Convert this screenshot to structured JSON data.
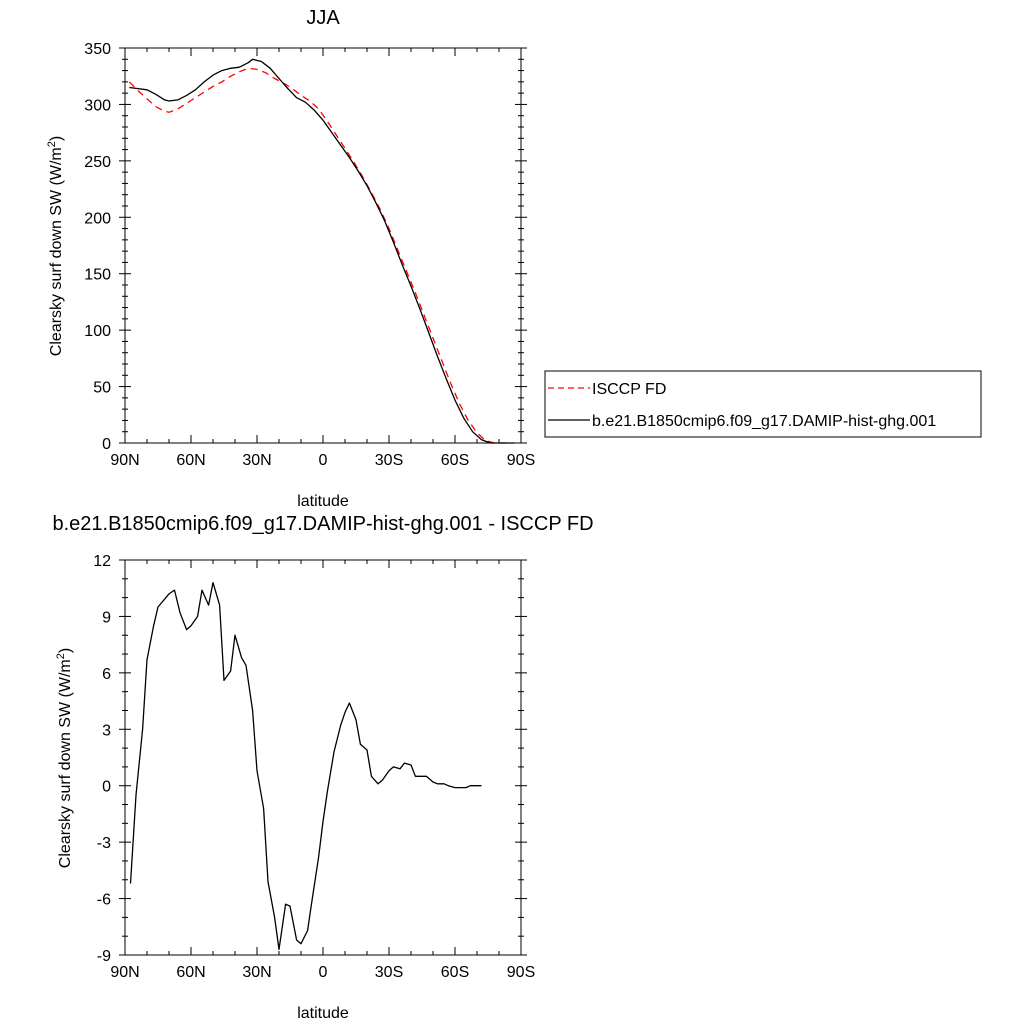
{
  "chart_data": [
    {
      "type": "line",
      "title": "JJA",
      "xlabel": "latitude",
      "ylabel_main": "Clearsky surf down SW (W/m",
      "ylabel_sup": "2",
      "ylabel_close": ")",
      "xlim": [
        90,
        -90
      ],
      "ylim": [
        0,
        350
      ],
      "xticks": [
        90,
        60,
        30,
        0,
        -30,
        -60,
        -90
      ],
      "xtick_labels": [
        "90N",
        "60N",
        "30N",
        "0",
        "30S",
        "60S",
        "90S"
      ],
      "yticks": [
        0,
        50,
        100,
        150,
        200,
        250,
        300,
        350
      ],
      "ytick_labels": [
        "0",
        "50",
        "100",
        "150",
        "200",
        "250",
        "300",
        "350"
      ],
      "grid": false,
      "legend_position": "right",
      "series": [
        {
          "name": "ISCCP FD",
          "color": "#ff0000",
          "dash": "dashed",
          "points": [
            [
              88,
              320
            ],
            [
              84,
              312
            ],
            [
              80,
              305
            ],
            [
              76,
              298
            ],
            [
              72,
              294
            ],
            [
              70,
              293
            ],
            [
              66,
              296
            ],
            [
              62,
              301
            ],
            [
              58,
              306
            ],
            [
              54,
              311
            ],
            [
              50,
              316
            ],
            [
              46,
              320
            ],
            [
              42,
              325
            ],
            [
              38,
              329
            ],
            [
              34,
              332
            ],
            [
              30,
              331
            ],
            [
              26,
              328
            ],
            [
              22,
              323
            ],
            [
              18,
              319
            ],
            [
              14,
              314
            ],
            [
              10,
              308
            ],
            [
              6,
              303
            ],
            [
              2,
              296
            ],
            [
              -2,
              285
            ],
            [
              -6,
              273
            ],
            [
              -10,
              261
            ],
            [
              -14,
              249
            ],
            [
              -18,
              236
            ],
            [
              -22,
              222
            ],
            [
              -26,
              207
            ],
            [
              -30,
              190
            ],
            [
              -34,
              171
            ],
            [
              -38,
              152
            ],
            [
              -42,
              133
            ],
            [
              -46,
              113
            ],
            [
              -50,
              93
            ],
            [
              -54,
              73
            ],
            [
              -58,
              53
            ],
            [
              -62,
              35
            ],
            [
              -66,
              20
            ],
            [
              -70,
              9
            ],
            [
              -74,
              2
            ],
            [
              -78,
              0
            ],
            [
              -82,
              0
            ],
            [
              -86,
              0
            ]
          ]
        },
        {
          "name": "b.e21.B1850cmip6.f09_g17.DAMIP-hist-ghg.001",
          "color": "#000000",
          "dash": "solid",
          "points": [
            [
              88,
              315
            ],
            [
              84,
              314
            ],
            [
              80,
              313
            ],
            [
              76,
              309
            ],
            [
              72,
              304
            ],
            [
              70,
              303
            ],
            [
              66,
              304
            ],
            [
              62,
              308
            ],
            [
              58,
              313
            ],
            [
              54,
              320
            ],
            [
              50,
              326
            ],
            [
              46,
              330
            ],
            [
              42,
              332
            ],
            [
              38,
              333
            ],
            [
              34,
              337
            ],
            [
              32,
              340
            ],
            [
              28,
              338
            ],
            [
              24,
              332
            ],
            [
              20,
              323
            ],
            [
              16,
              314
            ],
            [
              12,
              306
            ],
            [
              8,
              302
            ],
            [
              4,
              295
            ],
            [
              0,
              286
            ],
            [
              -4,
              275
            ],
            [
              -8,
              264
            ],
            [
              -12,
              253
            ],
            [
              -16,
              241
            ],
            [
              -20,
              228
            ],
            [
              -24,
              213
            ],
            [
              -28,
              197
            ],
            [
              -32,
              178
            ],
            [
              -36,
              158
            ],
            [
              -40,
              139
            ],
            [
              -44,
              119
            ],
            [
              -48,
              98
            ],
            [
              -52,
              77
            ],
            [
              -56,
              57
            ],
            [
              -60,
              38
            ],
            [
              -64,
              22
            ],
            [
              -68,
              10
            ],
            [
              -72,
              3
            ],
            [
              -76,
              0
            ],
            [
              -80,
              0
            ],
            [
              -84,
              0
            ],
            [
              -87,
              0
            ]
          ]
        }
      ]
    },
    {
      "type": "line",
      "title": "b.e21.B1850cmip6.f09_g17.DAMIP-hist-ghg.001 - ISCCP FD",
      "xlabel": "latitude",
      "ylabel_main": "Clearsky surf down SW (W/m",
      "ylabel_sup": "2",
      "ylabel_close": ")",
      "xlim": [
        90,
        -90
      ],
      "ylim": [
        -9,
        12
      ],
      "xticks": [
        90,
        60,
        30,
        0,
        -30,
        -60,
        -90
      ],
      "xtick_labels": [
        "90N",
        "60N",
        "30N",
        "0",
        "30S",
        "60S",
        "90S"
      ],
      "yticks": [
        -9,
        -6,
        -3,
        0,
        3,
        6,
        9,
        12
      ],
      "ytick_labels": [
        "-9",
        "-6",
        "-3",
        "0",
        "3",
        "6",
        "9",
        "12"
      ],
      "grid": false,
      "series": [
        {
          "color": "#000000",
          "dash": "solid",
          "points": [
            [
              87.5,
              -5.2
            ],
            [
              85,
              -0.5
            ],
            [
              82,
              3.0
            ],
            [
              80,
              6.7
            ],
            [
              77,
              8.5
            ],
            [
              75,
              9.5
            ],
            [
              70,
              10.2
            ],
            [
              67.5,
              10.4
            ],
            [
              65,
              9.2
            ],
            [
              62,
              8.3
            ],
            [
              60,
              8.5
            ],
            [
              57,
              9.0
            ],
            [
              55,
              10.4
            ],
            [
              52,
              9.6
            ],
            [
              50,
              10.8
            ],
            [
              47,
              9.6
            ],
            [
              45,
              5.6
            ],
            [
              42,
              6.1
            ],
            [
              40,
              8.0
            ],
            [
              37,
              6.8
            ],
            [
              35,
              6.4
            ],
            [
              32,
              4.0
            ],
            [
              30,
              0.8
            ],
            [
              27,
              -1.2
            ],
            [
              25,
              -5.1
            ],
            [
              22,
              -7.0
            ],
            [
              20,
              -8.7
            ],
            [
              17,
              -6.3
            ],
            [
              15,
              -6.4
            ],
            [
              12,
              -8.2
            ],
            [
              10,
              -8.4
            ],
            [
              7,
              -7.7
            ],
            [
              5,
              -6.1
            ],
            [
              2,
              -3.8
            ],
            [
              0,
              -1.9
            ],
            [
              -2,
              -0.3
            ],
            [
              -5,
              1.8
            ],
            [
              -8,
              3.2
            ],
            [
              -10,
              3.9
            ],
            [
              -12,
              4.4
            ],
            [
              -15,
              3.5
            ],
            [
              -17,
              2.2
            ],
            [
              -20,
              1.9
            ],
            [
              -22,
              0.5
            ],
            [
              -25,
              0.1
            ],
            [
              -27,
              0.3
            ],
            [
              -30,
              0.8
            ],
            [
              -32,
              1.0
            ],
            [
              -35,
              0.9
            ],
            [
              -37,
              1.2
            ],
            [
              -40,
              1.1
            ],
            [
              -42,
              0.5
            ],
            [
              -45,
              0.5
            ],
            [
              -47,
              0.5
            ],
            [
              -50,
              0.2
            ],
            [
              -52,
              0.1
            ],
            [
              -55,
              0.1
            ],
            [
              -57,
              0.0
            ],
            [
              -60,
              -0.1
            ],
            [
              -62,
              -0.1
            ],
            [
              -65,
              -0.1
            ],
            [
              -67,
              0.0
            ],
            [
              -70,
              0.0
            ],
            [
              -72,
              0.0
            ]
          ]
        }
      ]
    }
  ]
}
